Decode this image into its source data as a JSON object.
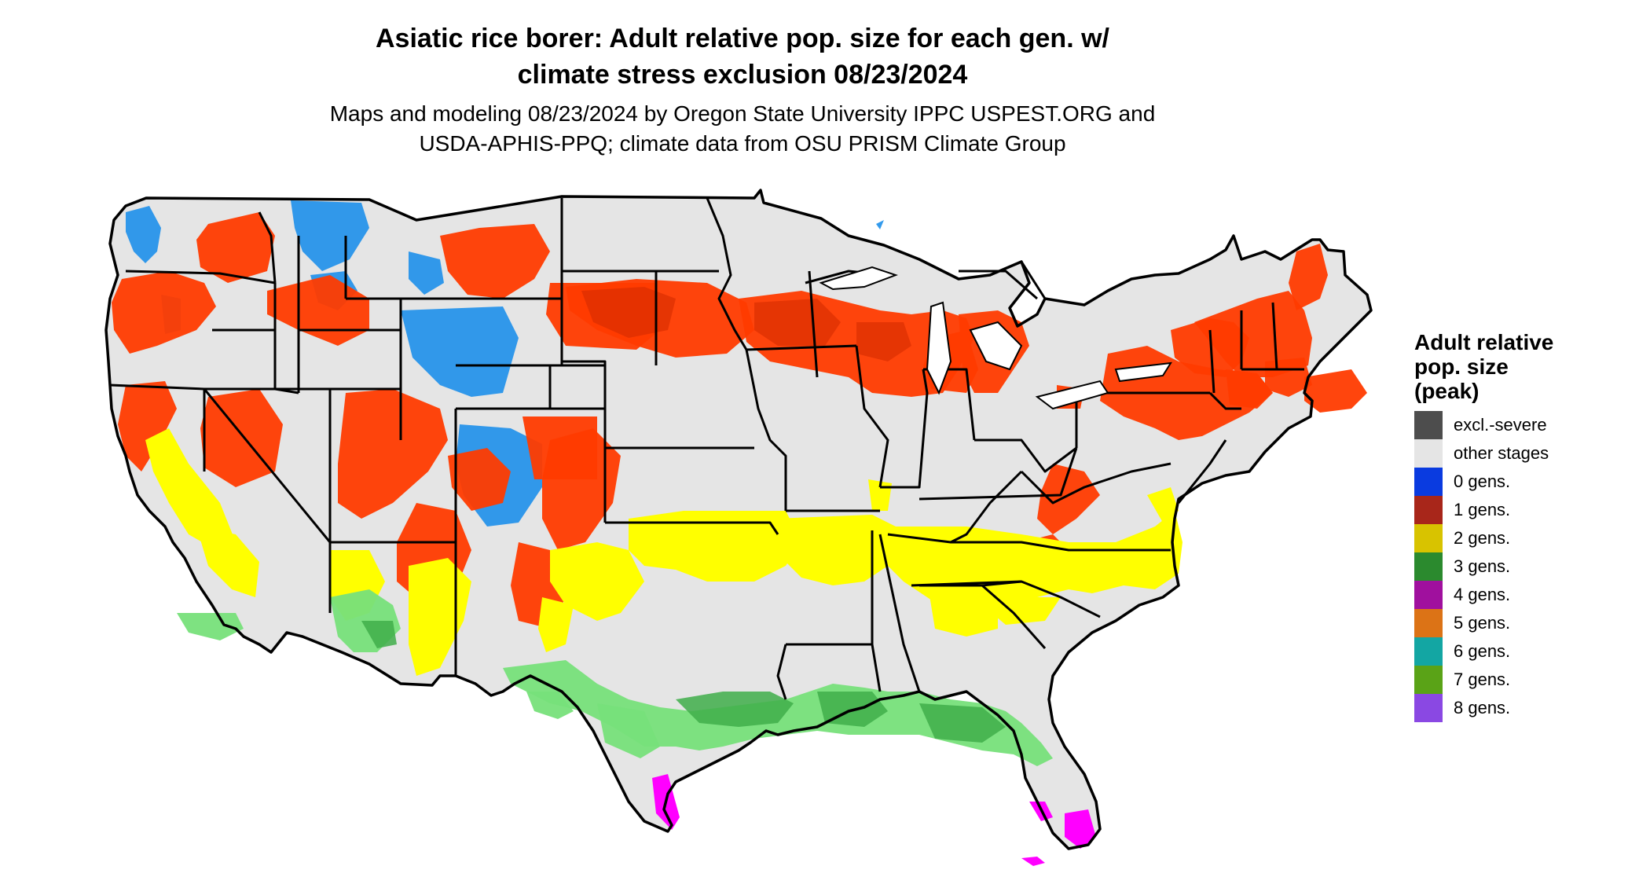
{
  "title_line1": "Asiatic rice borer: Adult relative pop. size for each gen. w/",
  "title_line2": "climate stress exclusion 08/23/2024",
  "subtitle_line1": "Maps and modeling 08/23/2024 by Oregon State University IPPC USPEST.ORG and",
  "subtitle_line2": "USDA-APHIS-PPQ; climate data from OSU PRISM Climate Group",
  "legend": {
    "title_line1": "Adult relative",
    "title_line2": "pop. size",
    "title_line3": "(peak)",
    "items": [
      {
        "label": "excl.-severe",
        "color": "#4d4d4d"
      },
      {
        "label": "other stages",
        "color": "#e5e5e5"
      },
      {
        "label": "0 gens.",
        "color": "#0a3be0"
      },
      {
        "label": "1 gens.",
        "color": "#a8261a"
      },
      {
        "label": "2 gens.",
        "color": "#d8c300"
      },
      {
        "label": "3 gens.",
        "color": "#2b8a2e"
      },
      {
        "label": "4 gens.",
        "color": "#a0109e"
      },
      {
        "label": "5 gens.",
        "color": "#dc7316"
      },
      {
        "label": "6 gens.",
        "color": "#13a6a3"
      },
      {
        "label": "7 gens.",
        "color": "#5aa317"
      },
      {
        "label": "8 gens.",
        "color": "#8a48e3"
      }
    ]
  },
  "map_colors": {
    "land": "#e5e5e5",
    "gen0": "#1d8fea",
    "gen1": "#ff3b00",
    "gen1_dark": "#d42b00",
    "gen2": "#ffff00",
    "gen3": "#77e07a",
    "gen3_dark": "#3fae4a",
    "gen4": "#ff00ff",
    "border": "#000000"
  }
}
